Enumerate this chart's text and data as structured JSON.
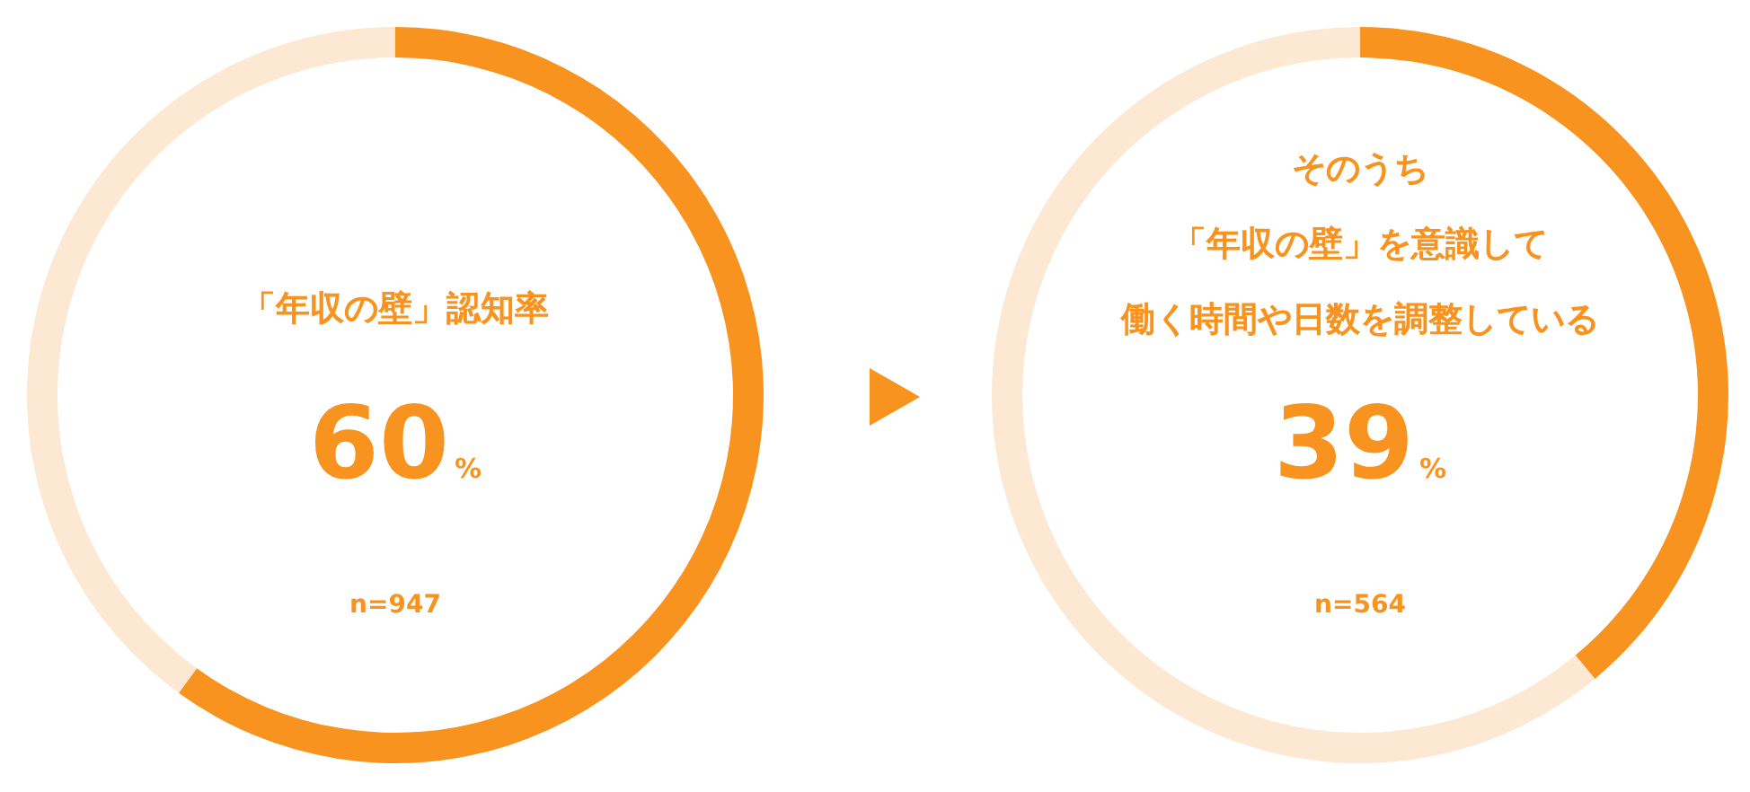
{
  "chart_data": [
    {
      "type": "donut",
      "title": "「年収の壁」認知率",
      "categories": [
        null,
        null
      ],
      "values": [
        60,
        40
      ],
      "colors": [
        "#f7931e",
        "#fde8d3"
      ],
      "annotations": [
        "60%",
        "n=947"
      ]
    },
    {
      "type": "donut",
      "title": "そのうち「年収の壁」を意識して働く時間や日数を調整している",
      "categories": [
        null,
        null
      ],
      "values": [
        39,
        61
      ],
      "colors": [
        "#f7931e",
        "#fde8d3"
      ],
      "annotations": [
        "39%",
        "n=564"
      ]
    }
  ]
}
